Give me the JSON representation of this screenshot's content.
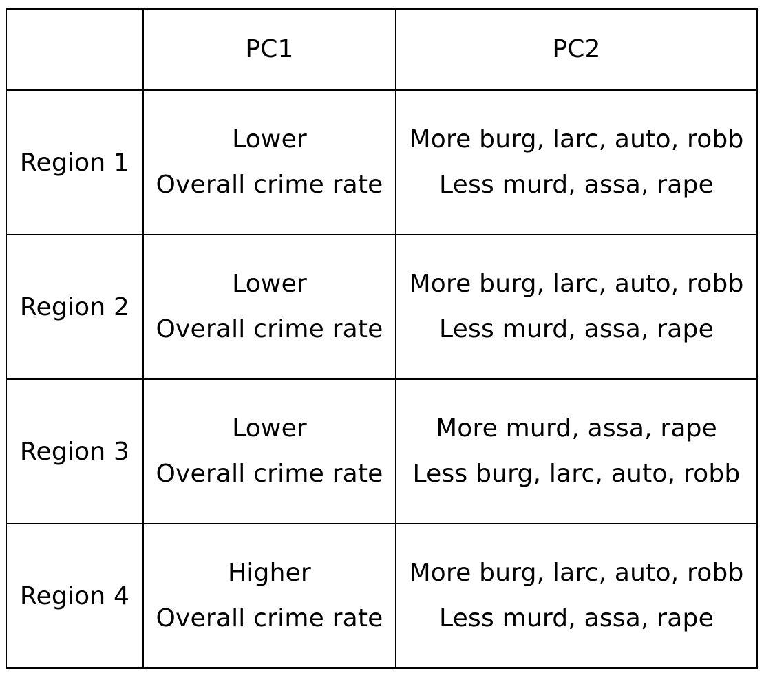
{
  "table": {
    "header": {
      "corner": "",
      "pc1": "PC1",
      "pc2": "PC2"
    },
    "rows": [
      {
        "region": "Region 1",
        "pc1": [
          "Lower",
          "Overall crime rate"
        ],
        "pc2": [
          "More burg, larc, auto, robb",
          "Less murd, assa, rape"
        ]
      },
      {
        "region": "Region 2",
        "pc1": [
          "Lower",
          "Overall crime rate"
        ],
        "pc2": [
          "More burg, larc, auto, robb",
          "Less murd, assa, rape"
        ]
      },
      {
        "region": "Region 3",
        "pc1": [
          "Lower",
          "Overall crime rate"
        ],
        "pc2": [
          "More murd, assa, rape",
          "Less burg, larc, auto, robb"
        ]
      },
      {
        "region": "Region 4",
        "pc1": [
          "Higher",
          "Overall crime rate"
        ],
        "pc2": [
          "More burg, larc, auto, robb",
          "Less murd, assa, rape"
        ]
      }
    ]
  }
}
